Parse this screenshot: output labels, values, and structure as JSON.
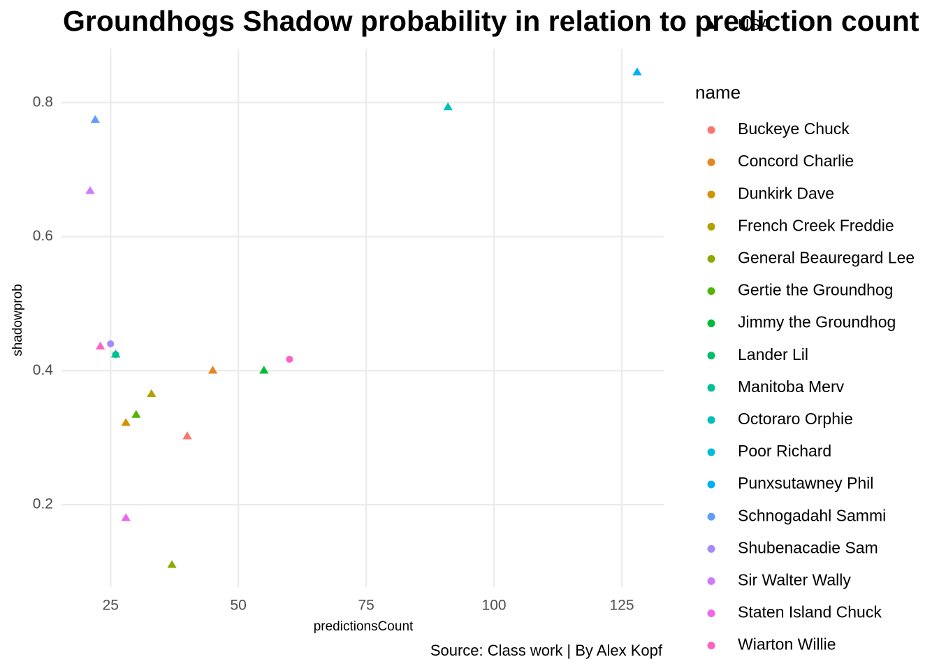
{
  "chart_data": {
    "type": "scatter",
    "title": "Groundhogs Shadow probability in relation to prediction count",
    "x_label": "predictionsCount",
    "y_label": "shadowprob",
    "caption": "Source: Class work | By Alex Kopf",
    "legend_title": "name",
    "shape_legend": {
      "label": "USA",
      "shape": "triangle"
    },
    "xlim": [
      15.4,
      133.2
    ],
    "ylim": [
      0.077,
      0.88
    ],
    "xticks": [
      25,
      50,
      75,
      100,
      125
    ],
    "yticks": [
      0.2,
      0.4,
      0.6,
      0.8
    ],
    "grid": true,
    "series": [
      {
        "name": "Buckeye Chuck",
        "color": "#F8766D",
        "x": [
          40
        ],
        "values": [
          0.302
        ],
        "shapes": [
          "triangle"
        ]
      },
      {
        "name": "Concord Charlie",
        "color": "#E7851E",
        "x": [
          45
        ],
        "values": [
          0.4
        ],
        "shapes": [
          "triangle"
        ]
      },
      {
        "name": "Dunkirk Dave",
        "color": "#D09400",
        "x": [
          28
        ],
        "values": [
          0.322
        ],
        "shapes": [
          "triangle"
        ]
      },
      {
        "name": "French Creek Freddie",
        "color": "#B2A100",
        "x": [
          33
        ],
        "values": [
          0.365
        ],
        "shapes": [
          "triangle"
        ]
      },
      {
        "name": "General Beauregard Lee",
        "color": "#8BAB00",
        "x": [
          37
        ],
        "values": [
          0.11
        ],
        "shapes": [
          "triangle"
        ]
      },
      {
        "name": "Gertie the Groundhog",
        "color": "#55B400",
        "x": [
          30
        ],
        "values": [
          0.334
        ],
        "shapes": [
          "triangle"
        ]
      },
      {
        "name": "Jimmy the Groundhog",
        "color": "#00BA38",
        "x": [
          55
        ],
        "values": [
          0.4
        ],
        "shapes": [
          "triangle"
        ]
      },
      {
        "name": "Lander Lil",
        "color": "#00BE6C",
        "x": [
          26
        ],
        "values": [
          0.424
        ],
        "shapes": [
          "triangle"
        ]
      },
      {
        "name": "Manitoba Merv",
        "color": "#00C094",
        "x": [
          26
        ],
        "values": [
          0.424
        ],
        "shapes": [
          "circle"
        ]
      },
      {
        "name": "Octoraro Orphie",
        "color": "#00BFBA",
        "x": [
          91
        ],
        "values": [
          0.793
        ],
        "shapes": [
          "triangle"
        ]
      },
      {
        "name": "Poor Richard",
        "color": "#00BBDA",
        "x": [],
        "values": [],
        "shapes": []
      },
      {
        "name": "Punxsutawney Phil",
        "color": "#00B0F6",
        "x": [
          128
        ],
        "values": [
          0.845
        ],
        "shapes": [
          "triangle"
        ]
      },
      {
        "name": "Schnogadahl Sammi",
        "color": "#619CFF",
        "x": [
          22
        ],
        "values": [
          0.774
        ],
        "shapes": [
          "triangle"
        ]
      },
      {
        "name": "Shubenacadie Sam",
        "color": "#A58AFF",
        "x": [
          25
        ],
        "values": [
          0.44
        ],
        "shapes": [
          "circle"
        ]
      },
      {
        "name": "Sir Walter Wally",
        "color": "#D078FF",
        "x": [
          21
        ],
        "values": [
          0.668
        ],
        "shapes": [
          "triangle"
        ]
      },
      {
        "name": "Staten Island Chuck",
        "color": "#F066EA",
        "x": [
          28
        ],
        "values": [
          0.18
        ],
        "shapes": [
          "triangle"
        ]
      },
      {
        "name": "Wiarton Willie",
        "color": "#FF61C3",
        "x": [
          60,
          23
        ],
        "values": [
          0.417,
          0.436
        ],
        "shapes": [
          "circle",
          "triangle"
        ]
      }
    ]
  }
}
